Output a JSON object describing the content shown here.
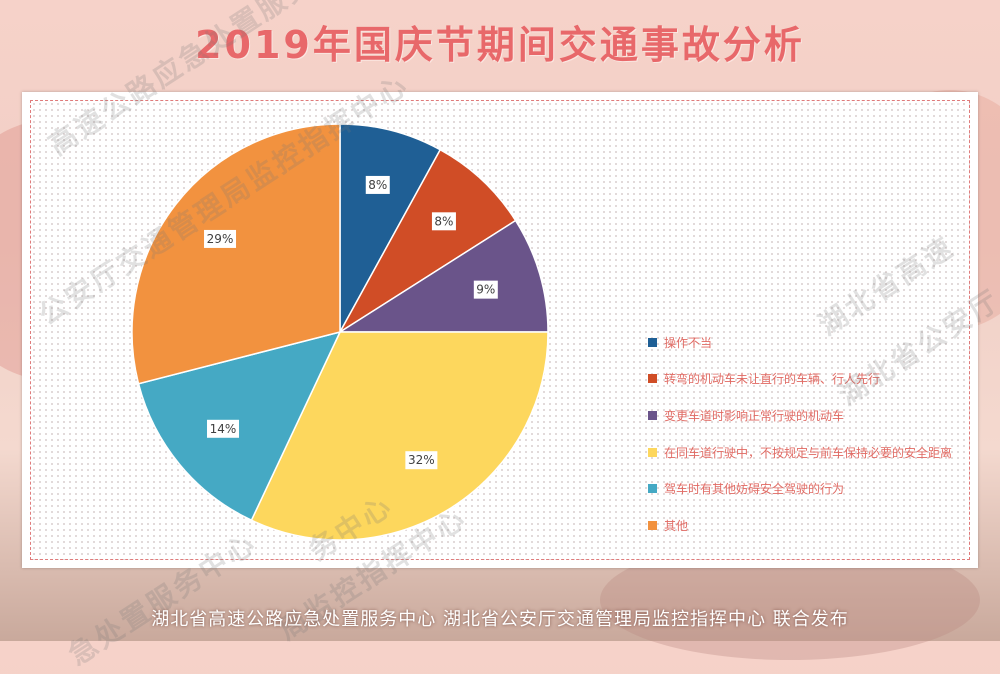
{
  "header": {
    "title": "2019年国庆节期间交通事故分析"
  },
  "footer": {
    "text": "湖北省高速公路应急处置服务中心 湖北省公安厅交通管理局监控指挥中心 联合发布"
  },
  "watermarks": {
    "a": "高速公路应急处置服务",
    "b": "公安厅交通管理局监控指挥中心",
    "c": "湖北省高速",
    "d": "湖北省公安厅",
    "e": "务中心",
    "f": "急处置服务中心",
    "g": "局监控指挥中心"
  },
  "chart_data": {
    "type": "pie",
    "title": "",
    "start_angle_deg": 0,
    "direction": "clockwise",
    "slices": [
      {
        "label": "操作不当",
        "value": 8,
        "display": "8%",
        "color": "#1f5f95"
      },
      {
        "label": "转弯的机动车未让直行的车辆、行人先行",
        "value": 8,
        "display": "8%",
        "color": "#d04d26"
      },
      {
        "label": "变更车道时影响正常行驶的机动车",
        "value": 9,
        "display": "9%",
        "color": "#6a548a"
      },
      {
        "label": "在同车道行驶中，不按规定与前车保持必要的安全距离",
        "value": 32,
        "display": "32%",
        "color": "#fdd75d"
      },
      {
        "label": "驾车时有其他妨碍安全驾驶的行为",
        "value": 14,
        "display": "14%",
        "color": "#45a9c4"
      },
      {
        "label": "其他",
        "value": 29,
        "display": "29%",
        "color": "#f2923f"
      }
    ],
    "legend_position": "right"
  }
}
